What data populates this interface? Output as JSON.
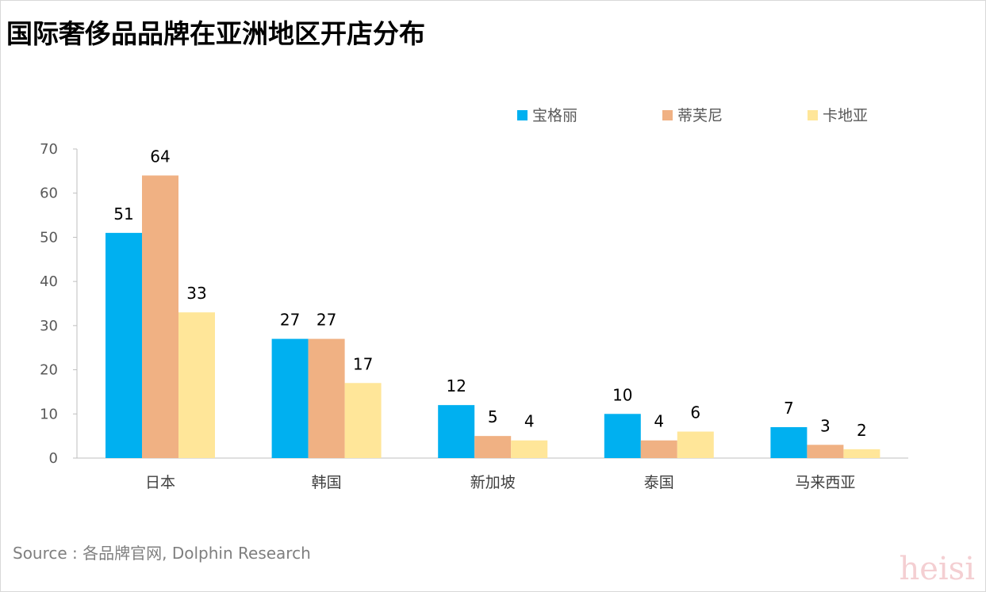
{
  "title": "国际奢侈品品牌在亚洲地区开店分布",
  "source": "Source : 各品牌官网, Dolphin Research",
  "watermark": "heisi",
  "chart_data": {
    "type": "bar",
    "categories": [
      "日本",
      "韩国",
      "新加坡",
      "泰国",
      "马来西亚"
    ],
    "series": [
      {
        "name": "宝格丽",
        "values": [
          51,
          27,
          12,
          10,
          7
        ],
        "color": "#00b0f0"
      },
      {
        "name": "蒂芙尼",
        "values": [
          64,
          27,
          5,
          4,
          3
        ],
        "color": "#f0b183"
      },
      {
        "name": "卡地亚",
        "values": [
          33,
          17,
          4,
          6,
          2
        ],
        "color": "#ffe699"
      }
    ],
    "ylim": [
      0,
      70
    ],
    "yticks": [
      0,
      10,
      20,
      30,
      40,
      50,
      60,
      70
    ],
    "grid": false,
    "legend": "top-right",
    "data_labels": true
  }
}
